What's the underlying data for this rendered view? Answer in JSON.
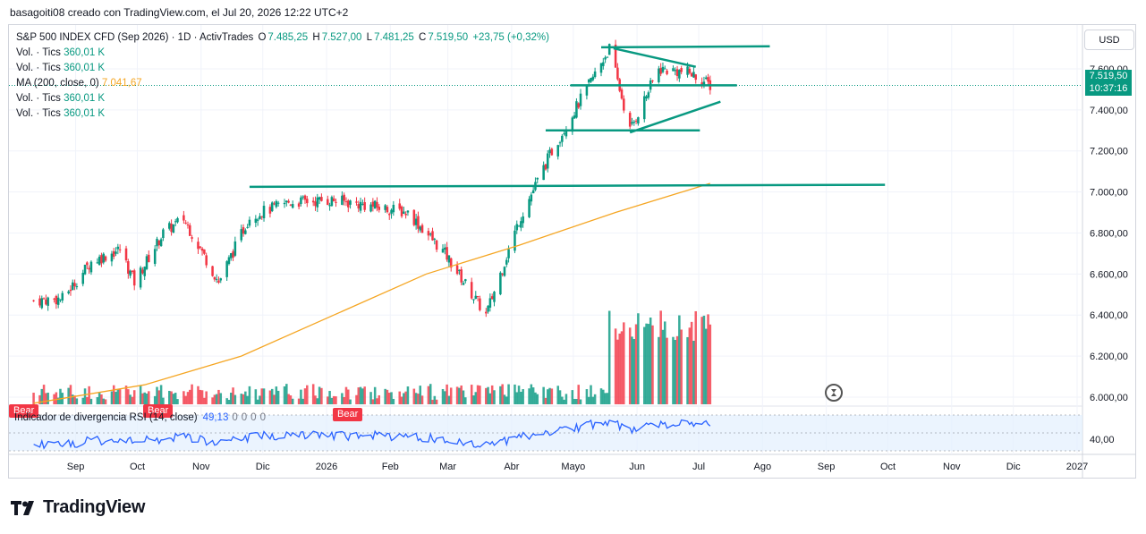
{
  "header": {
    "attribution": "basagoiti08 creado con TradingView.com, el Jul 20, 2026 12:22 UTC+2"
  },
  "legend": {
    "symbol": "S&P 500 INDEX CFD (Sep 2026) · 1D · ActivTrades",
    "o_label": "O",
    "o": "7.485,25",
    "h_label": "H",
    "h": "7.527,00",
    "l_label": "L",
    "l": "7.481,25",
    "c_label": "C",
    "c": "7.519,50",
    "change": "+23,75 (+0,32%)",
    "vol_label": "Vol. · Tics",
    "vol_value": "360,01 K",
    "ma_label": "MA (200, close, 0)",
    "ma_value": "7.041,67"
  },
  "rsi": {
    "label": "Indicador de divergencia RSI (14, close)",
    "value": "49,13",
    "n1": "0",
    "n2": "0",
    "n3": "0",
    "n4": "0",
    "level_label": "40,00"
  },
  "bear_label": "Bear",
  "price_tag": {
    "price": "7.519,50",
    "countdown": "10:37:16"
  },
  "currency": "USD",
  "brand": "TradingView",
  "colors": {
    "up": "#089981",
    "down": "#f23645",
    "ma": "#f5a623",
    "rsi": "#2962ff",
    "trendline": "#089981"
  },
  "chart_data": {
    "type": "candlestick",
    "title": "S&P 500 INDEX CFD (Sep 2026) · 1D · ActivTrades",
    "y_ticks": [
      "7.600,00",
      "7.400,00",
      "7.200,00",
      "7.000,00",
      "6.800,00",
      "6.600,00",
      "6.400,00",
      "6.200,00",
      "6.000,00"
    ],
    "y_tick_values": [
      7600,
      7400,
      7200,
      7000,
      6800,
      6600,
      6400,
      6200,
      6000
    ],
    "ylim": [
      5930,
      7770
    ],
    "x_ticks": [
      "Sep",
      "Oct",
      "Nov",
      "Dic",
      "2026",
      "Feb",
      "Mar",
      "Abr",
      "Mayo",
      "Jun",
      "Jul",
      "Ago",
      "Sep",
      "Oct",
      "Nov",
      "Dic",
      "2027"
    ],
    "price_path": [
      {
        "date": "2025-08-22",
        "close": 6470
      },
      {
        "date": "2025-09-05",
        "close": 6480
      },
      {
        "date": "2025-09-19",
        "close": 6660
      },
      {
        "date": "2025-10-03",
        "close": 6720
      },
      {
        "date": "2025-10-10",
        "close": 6560
      },
      {
        "date": "2025-10-24",
        "close": 6800
      },
      {
        "date": "2025-11-03",
        "close": 6870
      },
      {
        "date": "2025-11-20",
        "close": 6560
      },
      {
        "date": "2025-12-05",
        "close": 6880
      },
      {
        "date": "2025-12-24",
        "close": 6950
      },
      {
        "date": "2026-01-15",
        "close": 6960
      },
      {
        "date": "2026-02-03",
        "close": 6930
      },
      {
        "date": "2026-02-20",
        "close": 6900
      },
      {
        "date": "2026-03-10",
        "close": 6700
      },
      {
        "date": "2026-03-30",
        "close": 6400
      },
      {
        "date": "2026-04-15",
        "close": 6860
      },
      {
        "date": "2026-04-30",
        "close": 7180
      },
      {
        "date": "2026-05-15",
        "close": 7450
      },
      {
        "date": "2026-05-29",
        "close": 7700
      },
      {
        "date": "2026-06-08",
        "close": 7300
      },
      {
        "date": "2026-06-22",
        "close": 7600
      },
      {
        "date": "2026-07-07",
        "close": 7580
      },
      {
        "date": "2026-07-17",
        "close": 7519.5
      }
    ],
    "ma200": [
      {
        "date": "2025-08-22",
        "value": 5970
      },
      {
        "date": "2025-10-15",
        "value": 6060
      },
      {
        "date": "2025-12-01",
        "value": 6200
      },
      {
        "date": "2026-01-15",
        "value": 6400
      },
      {
        "date": "2026-03-01",
        "value": 6600
      },
      {
        "date": "2026-04-15",
        "value": 6740
      },
      {
        "date": "2026-06-01",
        "value": 6900
      },
      {
        "date": "2026-07-17",
        "value": 7041.67
      }
    ],
    "trendlines": [
      {
        "from": {
          "date": "2025-12-05",
          "value": 7025
        },
        "to": {
          "date": "2026-10-10",
          "value": 7035
        }
      },
      {
        "from": {
          "date": "2026-05-25",
          "value": 7705
        },
        "to": {
          "date": "2026-08-15",
          "value": 7710
        }
      },
      {
        "from": {
          "date": "2026-05-10",
          "value": 7520
        },
        "to": {
          "date": "2026-07-30",
          "value": 7520
        }
      },
      {
        "from": {
          "date": "2026-04-28",
          "value": 7300
        },
        "to": {
          "date": "2026-07-12",
          "value": 7300
        }
      },
      {
        "from": {
          "date": "2026-05-31",
          "value": 7700
        },
        "to": {
          "date": "2026-07-10",
          "value": 7610
        }
      },
      {
        "from": {
          "date": "2026-06-08",
          "value": 7290
        },
        "to": {
          "date": "2026-07-22",
          "value": 7440
        }
      }
    ],
    "rsi_level": 40
  }
}
